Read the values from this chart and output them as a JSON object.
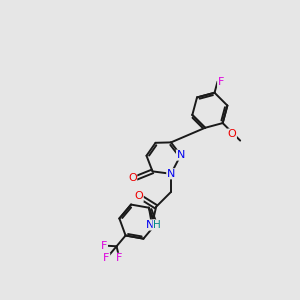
{
  "background_color": "#e6e6e6",
  "bond_color": "#1a1a1a",
  "atom_colors": {
    "N": "#0000ee",
    "O": "#ee0000",
    "F": "#dd00dd",
    "H": "#008888",
    "C": "#1a1a1a"
  },
  "figsize": [
    3.0,
    3.0
  ],
  "dpi": 100
}
